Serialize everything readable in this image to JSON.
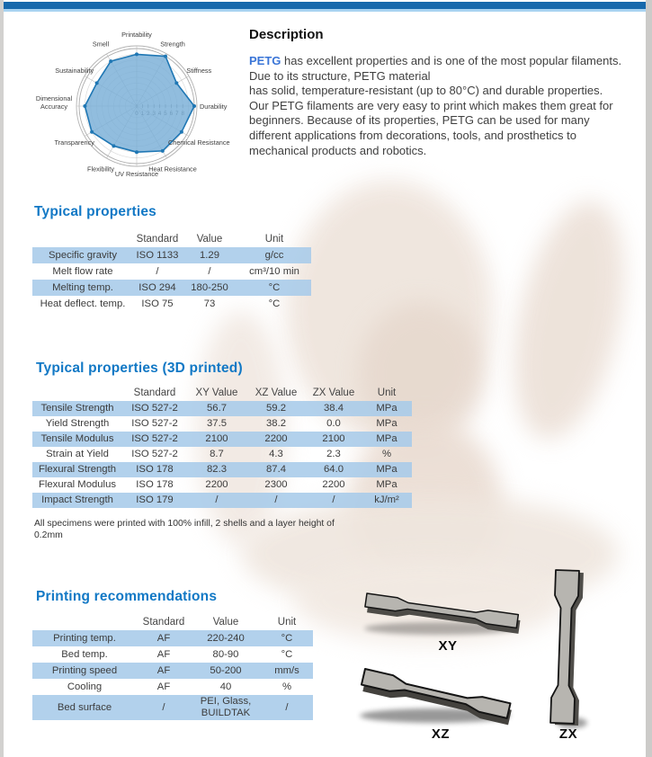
{
  "page": {
    "colors": {
      "top_bar": "#1769ac",
      "top_bar_accent": "#a8d3f1",
      "heading_blue": "#1178c5",
      "petg_blue": "#3a75d7",
      "row_highlight": "#a7cbe9",
      "body_text": "#3f3f3f"
    }
  },
  "description": {
    "heading": "Description",
    "lead_word": "PETG",
    "body_1": " has excellent properties and is one of the most popular filaments. Due to its structure, PETG material",
    "body_2": "has solid, temperature-resistant (up to 80°C) and durable properties. Our PETG filaments are very easy to print which makes them great for beginners. Because of its properties, PETG can be used for many different applications from decorations, tools, and prosthetics to mechanical products and robotics."
  },
  "chart_data": {
    "type": "radar",
    "title": "",
    "categories": [
      "Printability",
      "Strength",
      "Stiffness",
      "Durability",
      "Chemical Resistance",
      "Heat Resistance",
      "UV Resistance",
      "Flexibility",
      "Transparency",
      "Dimensional Accuracy",
      "Sustainability",
      "Smell"
    ],
    "values": [
      9,
      10,
      8,
      10,
      9,
      9,
      8,
      8,
      9,
      9,
      8,
      9
    ],
    "scale_min": 0,
    "scale_max": 10,
    "tick_labels": [
      "0",
      "1",
      "2",
      "3",
      "4",
      "5",
      "6",
      "7",
      "8"
    ],
    "grid": true,
    "legend_position": "none",
    "fill_color": "#79aed7",
    "line_color": "#1f77b4"
  },
  "typical_properties": {
    "heading": "Typical properties",
    "columns": [
      "",
      "Standard",
      "Value",
      "Unit"
    ],
    "rows": [
      [
        "Specific gravity",
        "ISO 1133",
        "1.29",
        "g/cc"
      ],
      [
        "Melt flow rate",
        "/",
        "/",
        "cm³/10 min"
      ],
      [
        "Melting temp.",
        "ISO 294",
        "180-250",
        "°C"
      ],
      [
        "Heat deflect. temp.",
        "ISO 75",
        "73",
        "°C"
      ]
    ]
  },
  "printed_properties": {
    "heading": "Typical properties (3D printed)",
    "columns": [
      "",
      "Standard",
      "XY Value",
      "XZ Value",
      "ZX Value",
      "Unit"
    ],
    "rows": [
      [
        "Tensile Strength",
        "ISO 527-2",
        "56.7",
        "59.2",
        "38.4",
        "MPa"
      ],
      [
        "Yield Strength",
        "ISO 527-2",
        "37.5",
        "38.2",
        "0.0",
        "MPa"
      ],
      [
        "Tensile Modulus",
        "ISO 527-2",
        "2100",
        "2200",
        "2100",
        "MPa"
      ],
      [
        "Strain at Yield",
        "ISO 527-2",
        "8.7",
        "4.3",
        "2.3",
        "%"
      ],
      [
        "Flexural Strength",
        "ISO 178",
        "82.3",
        "87.4",
        "64.0",
        "MPa"
      ],
      [
        "Flexural Modulus",
        "ISO 178",
        "2200",
        "2300",
        "2200",
        "MPa"
      ],
      [
        "Impact Strength",
        "ISO 179",
        "/",
        "/",
        "/",
        "kJ/m²"
      ]
    ],
    "note_1": "All specimens were printed with 100% infill, 2 shells and a layer height of",
    "note_2": "0.2mm"
  },
  "printing_recommendations": {
    "heading": "Printing recommendations",
    "columns": [
      "",
      "Standard",
      "Value",
      "Unit"
    ],
    "rows": [
      [
        "Printing temp.",
        "AF",
        "220-240",
        "°C"
      ],
      [
        "Bed temp.",
        "AF",
        "80-90",
        "°C"
      ],
      [
        "Printing speed",
        "AF",
        "50-200",
        "mm/s"
      ],
      [
        "Cooling",
        "AF",
        "40",
        "%"
      ],
      [
        "Bed surface",
        "/",
        "PEI, Glass, BUILDTAK",
        "/"
      ]
    ]
  },
  "specimens": {
    "labels": [
      "XY",
      "XZ",
      "ZX"
    ]
  }
}
